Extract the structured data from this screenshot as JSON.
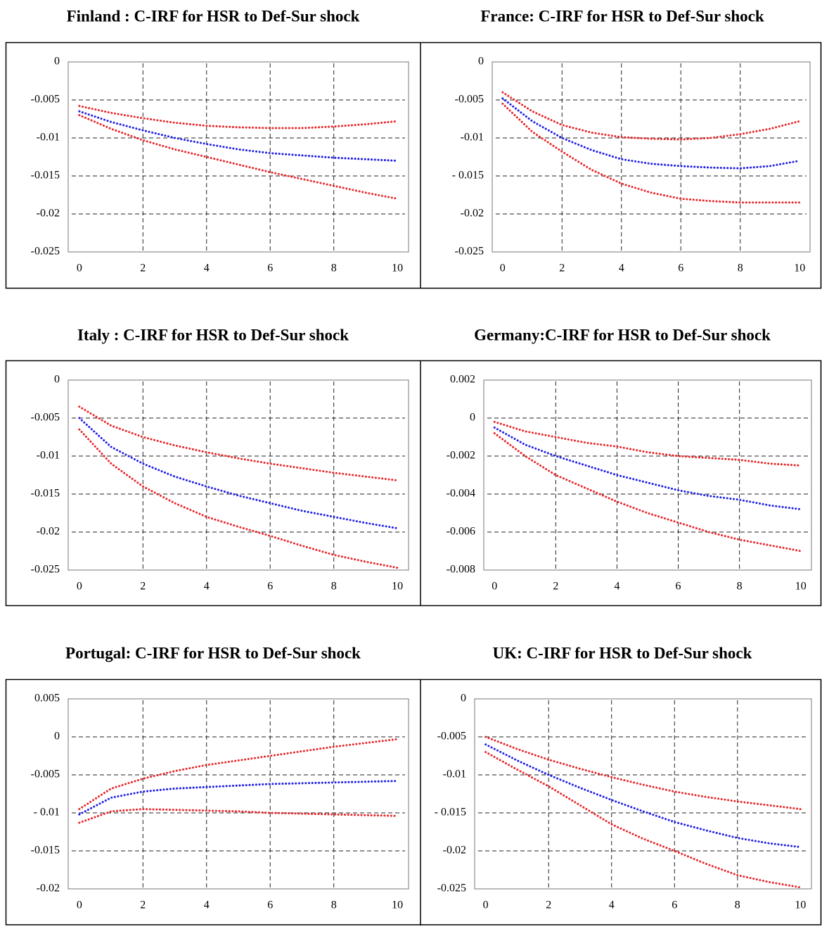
{
  "chart_data": [
    {
      "type": "line",
      "title": "Finland : C-IRF for HSR to Def-Sur shock",
      "x": [
        0,
        1,
        2,
        3,
        4,
        5,
        6,
        7,
        8,
        9,
        10
      ],
      "xlim": [
        -0.35,
        10.35
      ],
      "xticks": [
        0,
        2,
        4,
        6,
        8,
        10
      ],
      "ylim": [
        -0.025,
        0
      ],
      "yticks": [
        0,
        -0.005,
        -0.01,
        -0.015,
        -0.02,
        -0.025
      ],
      "grid": true,
      "series": [
        {
          "color": "#e8262a",
          "values": [
            -0.0058,
            -0.0067,
            -0.0074,
            -0.008,
            -0.0084,
            -0.0086,
            -0.0087,
            -0.0087,
            -0.0085,
            -0.0082,
            -0.0078
          ]
        },
        {
          "color": "#1f1fe6",
          "values": [
            -0.0065,
            -0.0079,
            -0.009,
            -0.01,
            -0.0108,
            -0.0115,
            -0.012,
            -0.0123,
            -0.0126,
            -0.0128,
            -0.013
          ]
        },
        {
          "color": "#e8262a",
          "values": [
            -0.007,
            -0.0088,
            -0.0103,
            -0.0115,
            -0.0125,
            -0.0135,
            -0.0145,
            -0.0154,
            -0.0163,
            -0.0172,
            -0.018
          ]
        }
      ]
    },
    {
      "type": "line",
      "title": "France: C-IRF for HSR to Def-Sur shock",
      "x": [
        0,
        1,
        2,
        3,
        4,
        5,
        6,
        7,
        8,
        9,
        10
      ],
      "xlim": [
        -0.35,
        10.35
      ],
      "xticks": [
        0,
        2,
        4,
        6,
        8,
        10
      ],
      "ylim": [
        -0.025,
        0
      ],
      "yticks": [
        0,
        -0.005,
        -0.01,
        {
          "value": -0.015,
          "label": "- 0.015"
        },
        -0.02,
        -0.025
      ],
      "grid": true,
      "series": [
        {
          "color": "#e8262a",
          "values": [
            -0.004,
            -0.0065,
            -0.0083,
            -0.0093,
            -0.0099,
            -0.0101,
            -0.0102,
            -0.01,
            -0.0095,
            -0.0088,
            -0.0078
          ]
        },
        {
          "color": "#1f1fe6",
          "values": [
            -0.0048,
            -0.0078,
            -0.01,
            -0.0116,
            -0.0128,
            -0.0134,
            -0.0137,
            -0.0139,
            -0.014,
            -0.0137,
            -0.013
          ]
        },
        {
          "color": "#e8262a",
          "values": [
            -0.0055,
            -0.0092,
            -0.0118,
            -0.0142,
            -0.016,
            -0.0172,
            -0.018,
            -0.0183,
            -0.0185,
            -0.0185,
            -0.0185
          ]
        }
      ]
    },
    {
      "type": "line",
      "title": "Italy : C-IRF for HSR to Def-Sur shock",
      "x": [
        0,
        1,
        2,
        3,
        4,
        5,
        6,
        7,
        8,
        9,
        10
      ],
      "xlim": [
        -0.35,
        10.35
      ],
      "xticks": [
        0,
        2,
        4,
        6,
        8,
        10
      ],
      "ylim": [
        -0.025,
        0
      ],
      "yticks": [
        0,
        -0.005,
        -0.01,
        -0.015,
        -0.02,
        -0.025
      ],
      "grid": true,
      "series": [
        {
          "color": "#e8262a",
          "values": [
            -0.0035,
            -0.006,
            -0.0075,
            -0.0086,
            -0.0095,
            -0.0103,
            -0.011,
            -0.0116,
            -0.0122,
            -0.0127,
            -0.0132
          ]
        },
        {
          "color": "#1f1fe6",
          "values": [
            -0.005,
            -0.0088,
            -0.011,
            -0.0127,
            -0.014,
            -0.0152,
            -0.0162,
            -0.0172,
            -0.018,
            -0.0188,
            -0.0195
          ]
        },
        {
          "color": "#e8262a",
          "values": [
            -0.0065,
            -0.011,
            -0.014,
            -0.0162,
            -0.018,
            -0.0193,
            -0.0205,
            -0.0218,
            -0.023,
            -0.0239,
            -0.0247
          ]
        }
      ]
    },
    {
      "type": "line",
      "title": "Germany:C-IRF for HSR to Def-Sur shock",
      "x": [
        0,
        1,
        2,
        3,
        4,
        5,
        6,
        7,
        8,
        9,
        10
      ],
      "xlim": [
        -0.35,
        10.35
      ],
      "xticks": [
        0,
        2,
        4,
        6,
        8,
        10
      ],
      "ylim": [
        -0.008,
        0.002
      ],
      "yticks": [
        0.002,
        0,
        -0.002,
        -0.004,
        -0.006,
        -0.008
      ],
      "grid": true,
      "series": [
        {
          "color": "#e8262a",
          "values": [
            -0.0002,
            -0.0007,
            -0.001,
            -0.0013,
            -0.0015,
            -0.0018,
            -0.002,
            -0.0021,
            -0.0022,
            -0.0024,
            -0.0025
          ]
        },
        {
          "color": "#1f1fe6",
          "values": [
            -0.0005,
            -0.0014,
            -0.002,
            -0.0025,
            -0.003,
            -0.0034,
            -0.0038,
            -0.0041,
            -0.0043,
            -0.0046,
            -0.0048
          ]
        },
        {
          "color": "#e8262a",
          "values": [
            -0.0008,
            -0.002,
            -0.003,
            -0.0037,
            -0.0044,
            -0.005,
            -0.0055,
            -0.006,
            -0.0064,
            -0.0067,
            -0.007
          ]
        }
      ]
    },
    {
      "type": "line",
      "title": "Portugal: C-IRF for HSR to Def-Sur shock",
      "x": [
        0,
        1,
        2,
        3,
        4,
        5,
        6,
        7,
        8,
        9,
        10
      ],
      "xlim": [
        -0.35,
        10.35
      ],
      "xticks": [
        0,
        2,
        4,
        6,
        8,
        10
      ],
      "ylim": [
        -0.02,
        0.005
      ],
      "yticks": [
        0.005,
        0,
        -0.005,
        {
          "value": -0.01,
          "label": "- 0.01"
        },
        -0.015,
        -0.02
      ],
      "grid": true,
      "series": [
        {
          "color": "#e8262a",
          "values": [
            -0.0095,
            -0.0068,
            -0.0055,
            -0.0045,
            -0.0037,
            -0.0031,
            -0.0025,
            -0.0019,
            -0.0013,
            -0.0008,
            -0.0003
          ]
        },
        {
          "color": "#1f1fe6",
          "values": [
            -0.0102,
            -0.008,
            -0.0072,
            -0.0068,
            -0.0066,
            -0.0064,
            -0.0062,
            -0.0061,
            -0.006,
            -0.0059,
            -0.0058
          ]
        },
        {
          "color": "#e8262a",
          "values": [
            -0.0113,
            -0.0098,
            -0.0095,
            -0.0096,
            -0.0097,
            -0.0098,
            -0.01,
            -0.0101,
            -0.0102,
            -0.0103,
            -0.0104
          ]
        }
      ]
    },
    {
      "type": "line",
      "title": "UK: C-IRF for HSR to Def-Sur shock",
      "x": [
        0,
        1,
        2,
        3,
        4,
        5,
        6,
        7,
        8,
        9,
        10
      ],
      "xlim": [
        -0.35,
        10.35
      ],
      "xticks": [
        0,
        2,
        4,
        6,
        8,
        10
      ],
      "ylim": [
        -0.025,
        0
      ],
      "yticks": [
        0,
        -0.005,
        -0.01,
        {
          "value": -0.015,
          "label": "- 0.015"
        },
        -0.02,
        -0.025
      ],
      "grid": true,
      "series": [
        {
          "color": "#e8262a",
          "values": [
            -0.005,
            -0.0066,
            -0.008,
            -0.0092,
            -0.0103,
            -0.0113,
            -0.0122,
            -0.0129,
            -0.0135,
            -0.014,
            -0.0145
          ]
        },
        {
          "color": "#1f1fe6",
          "values": [
            -0.006,
            -0.0081,
            -0.01,
            -0.0117,
            -0.0133,
            -0.0148,
            -0.0162,
            -0.0173,
            -0.0183,
            -0.019,
            -0.0195
          ]
        },
        {
          "color": "#e8262a",
          "values": [
            -0.007,
            -0.0093,
            -0.0115,
            -0.014,
            -0.0165,
            -0.0184,
            -0.02,
            -0.0217,
            -0.0232,
            -0.0241,
            -0.0248
          ]
        }
      ]
    }
  ]
}
